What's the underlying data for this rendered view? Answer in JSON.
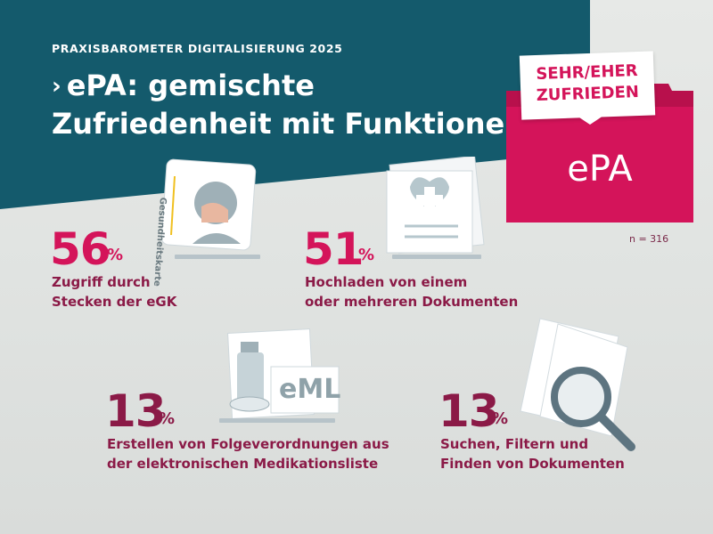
{
  "header": {
    "kicker": "PRAXISBAROMETER DIGITALISIERUNG 2025",
    "title_chevron": "›",
    "title_line1": "ePA: gemischte",
    "title_line2": "Zufriedenheit mit Funktionen"
  },
  "badge": {
    "note_line1": "SEHR/EHER",
    "note_line2": "ZUFRIEDEN",
    "folder_label": "ePA"
  },
  "sample": "n = 316",
  "stats": [
    {
      "value": "56",
      "unit": "%",
      "line1": "Zugriff durch",
      "line2": "Stecken der eGK"
    },
    {
      "value": "51",
      "unit": "%",
      "line1": "Hochladen von einem",
      "line2": "oder mehreren Dokumenten"
    },
    {
      "value": "13",
      "unit": "%",
      "line1": "Erstellen von Folgeverordnungen aus",
      "line2": "der elektronischen Medikationsliste"
    },
    {
      "value": "13",
      "unit": "%",
      "line1": "Suchen, Filtern und",
      "line2": "Finden von Dokumenten"
    }
  ],
  "illustrations": {
    "card_text": "Gesundheitskarte",
    "eml_text": "eML"
  },
  "colors": {
    "teal": "#145a6c",
    "magenta": "#d4145a",
    "wine": "#8b1a47"
  }
}
